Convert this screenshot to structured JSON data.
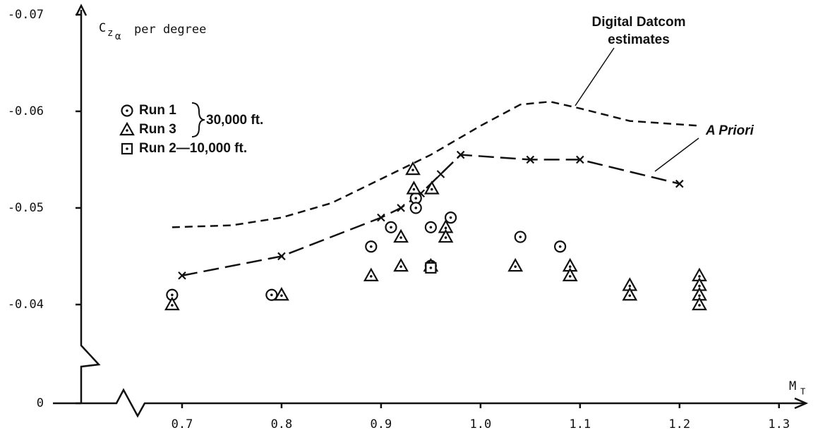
{
  "chart_data": {
    "type": "scatter",
    "ylabel_symbol": "C",
    "ylabel_sub": "z",
    "ylabel_subsub": "α",
    "ylabel_text": "per degree",
    "xlabel_symbol": "M",
    "xlabel_sub": "T",
    "xlim": [
      0.6,
      1.325
    ],
    "xticks": [
      0.7,
      0.8,
      0.9,
      {
        "value": 1,
        "label": "1.0"
      },
      1.1,
      1.2,
      1.3
    ],
    "ylim": [
      -0.035,
      -0.0705
    ],
    "yticks": [
      -0.07,
      -0.06,
      -0.05,
      -0.04,
      0
    ],
    "y_break": true,
    "x_break": true,
    "series": [
      {
        "name": "Run 1",
        "marker": "circle",
        "color": "#111111",
        "x": [
          0.69,
          0.79,
          0.89,
          0.91,
          0.935,
          0.935,
          0.95,
          0.97,
          0.95,
          1.04,
          1.08
        ],
        "values": [
          -0.041,
          -0.041,
          -0.046,
          -0.048,
          -0.051,
          -0.05,
          -0.048,
          -0.049,
          -0.044,
          -0.047,
          -0.046
        ]
      },
      {
        "name": "Run 3",
        "marker": "triangle",
        "color": "#111111",
        "x": [
          0.69,
          0.8,
          0.89,
          0.92,
          0.92,
          0.932,
          0.933,
          0.951,
          0.95,
          0.965,
          0.965,
          1.035,
          1.09,
          1.09,
          1.15,
          1.15,
          1.22,
          1.22,
          1.22,
          1.22
        ],
        "values": [
          -0.04,
          -0.041,
          -0.043,
          -0.044,
          -0.047,
          -0.054,
          -0.052,
          -0.052,
          -0.044,
          -0.048,
          -0.047,
          -0.044,
          -0.044,
          -0.043,
          -0.042,
          -0.041,
          -0.043,
          -0.042,
          -0.041,
          -0.04
        ]
      },
      {
        "name": "Run 2—10,000 ft.",
        "marker": "square",
        "color": "#111111",
        "x": [
          0.95
        ],
        "values": [
          -0.0438
        ]
      }
    ],
    "legend_brace_label": "30,000 ft.",
    "lines": [
      {
        "style": "dashed",
        "color": "#111111",
        "x": [
          0.69,
          0.75,
          0.8,
          0.85,
          0.9,
          0.95,
          1.0,
          1.04,
          1.07,
          1.1,
          1.15,
          1.22
        ],
        "values": [
          -0.048,
          -0.0482,
          -0.049,
          -0.0505,
          -0.053,
          -0.0555,
          -0.0585,
          -0.0607,
          -0.061,
          -0.0603,
          -0.059,
          -0.0585
        ]
      },
      {
        "style": "long-dashed",
        "marker": "cross",
        "color": "#111111",
        "x": [
          0.7,
          0.8,
          0.9,
          0.92,
          0.94,
          0.96,
          0.98,
          1.05,
          1.1,
          1.2
        ],
        "values": [
          -0.043,
          -0.045,
          -0.049,
          -0.05,
          -0.0515,
          -0.0535,
          -0.0555,
          -0.055,
          -0.055,
          -0.0525
        ]
      }
    ],
    "annotations": [
      {
        "text": "Digital Datcom"
      },
      {
        "text": "estimates"
      },
      {
        "text": "A Priori"
      }
    ]
  }
}
